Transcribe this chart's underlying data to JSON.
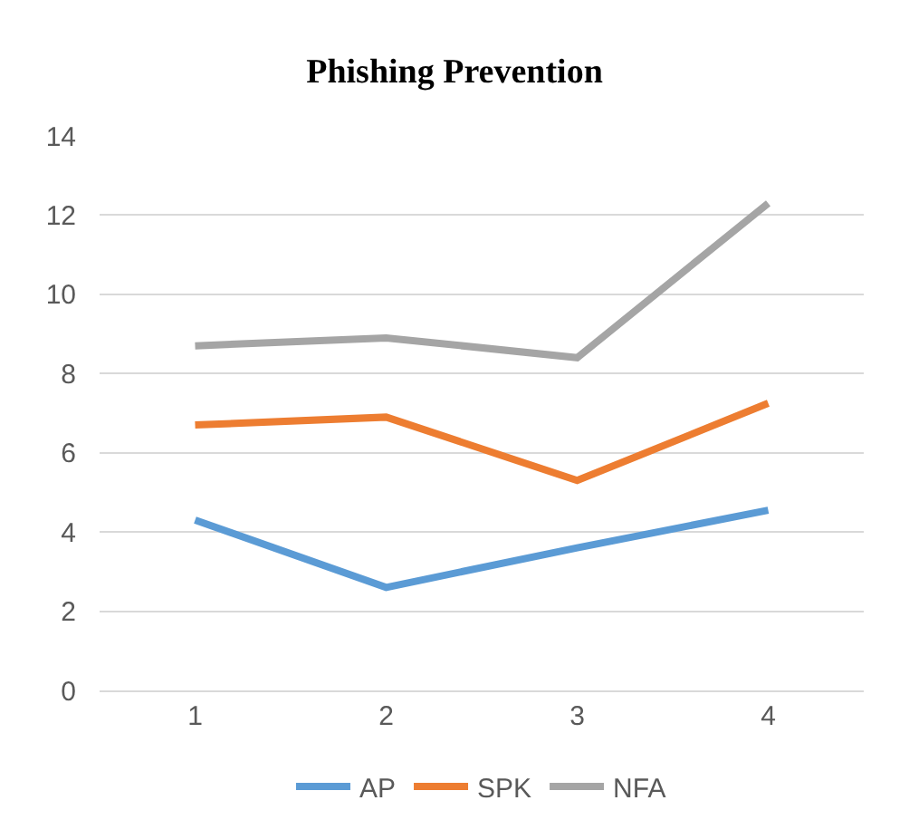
{
  "chart_data": {
    "type": "line",
    "title": "Phishing Prevention",
    "categories": [
      "1",
      "2",
      "3",
      "4"
    ],
    "series": [
      {
        "name": "AP",
        "color": "#5b9bd5",
        "values": [
          4.3,
          2.6,
          3.6,
          4.55
        ]
      },
      {
        "name": "SPK",
        "color": "#ed7d31",
        "values": [
          6.7,
          6.9,
          5.3,
          7.25
        ]
      },
      {
        "name": "NFA",
        "color": "#a5a5a5",
        "values": [
          8.7,
          8.9,
          8.4,
          12.3
        ]
      }
    ],
    "ylim": [
      0,
      14
    ],
    "yticks": [
      0,
      2,
      4,
      6,
      8,
      10,
      12,
      14
    ],
    "grid": "y",
    "legend": "bottom",
    "marker": "none",
    "line_style": "solid"
  }
}
